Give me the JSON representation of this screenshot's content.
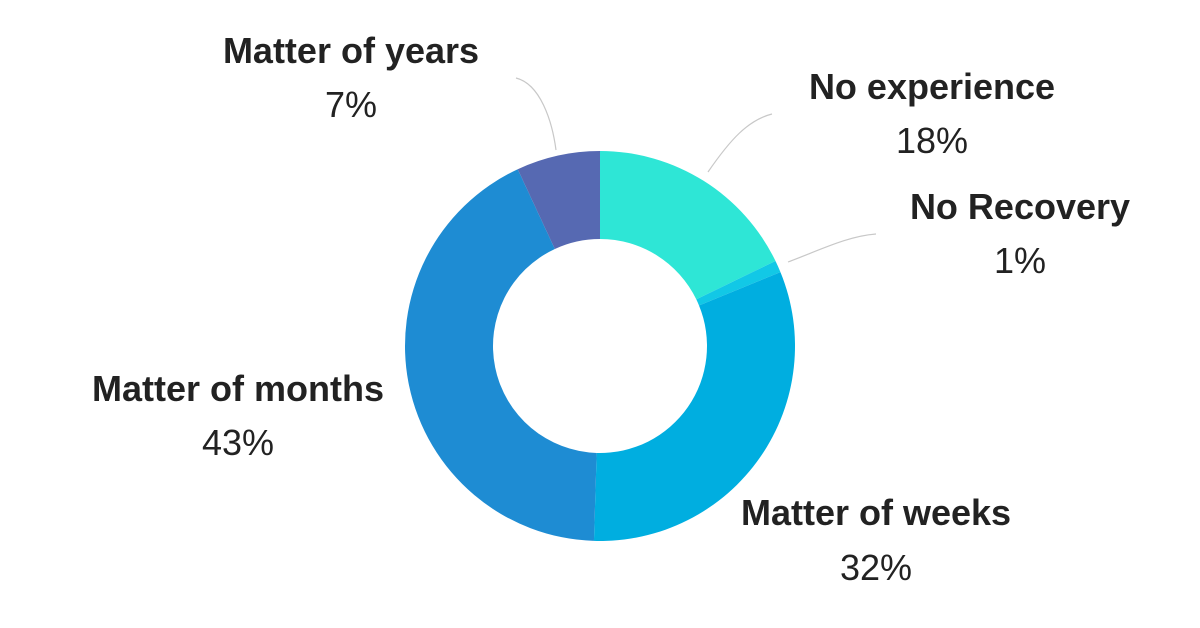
{
  "chart_data": {
    "type": "pie",
    "variant": "donut",
    "categories": [
      "No experience",
      "No Recovery",
      "Matter of weeks",
      "Matter of months",
      "Matter of years"
    ],
    "values": [
      18,
      1,
      32,
      43,
      7
    ],
    "value_labels": [
      "18%",
      "1%",
      "32%",
      "43%",
      "7%"
    ],
    "colors": [
      "#2ee6d6",
      "#12c8e6",
      "#00aee0",
      "#1e8cd3",
      "#5669b2"
    ],
    "legend": "none",
    "label_placement": "outside with leader lines"
  }
}
